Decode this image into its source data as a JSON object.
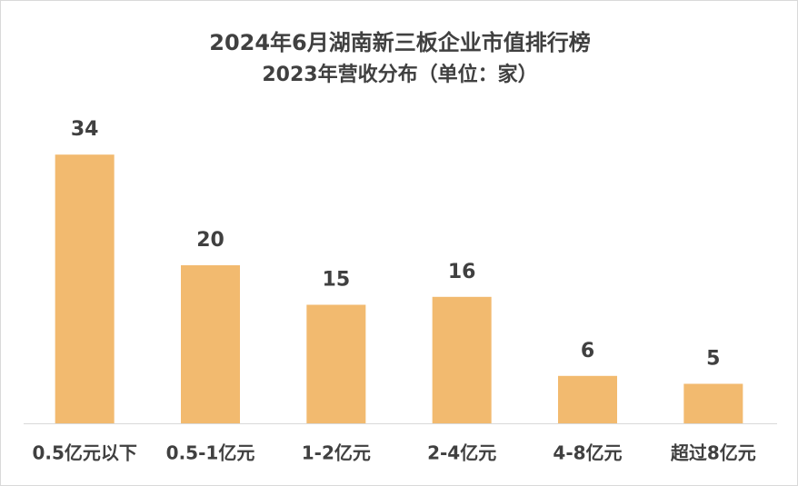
{
  "chart_data": {
    "type": "bar",
    "title": "2024年6月湖南新三板企业市值排行榜",
    "subtitle": "2023年营收分布（单位：家）",
    "categories": [
      "0.5亿元以下",
      "0.5-1亿元",
      "1-2亿元",
      "2-4亿元",
      "4-8亿元",
      "超过8亿元"
    ],
    "values": [
      34,
      20,
      15,
      16,
      6,
      5
    ],
    "color": "#f2ba6f"
  }
}
